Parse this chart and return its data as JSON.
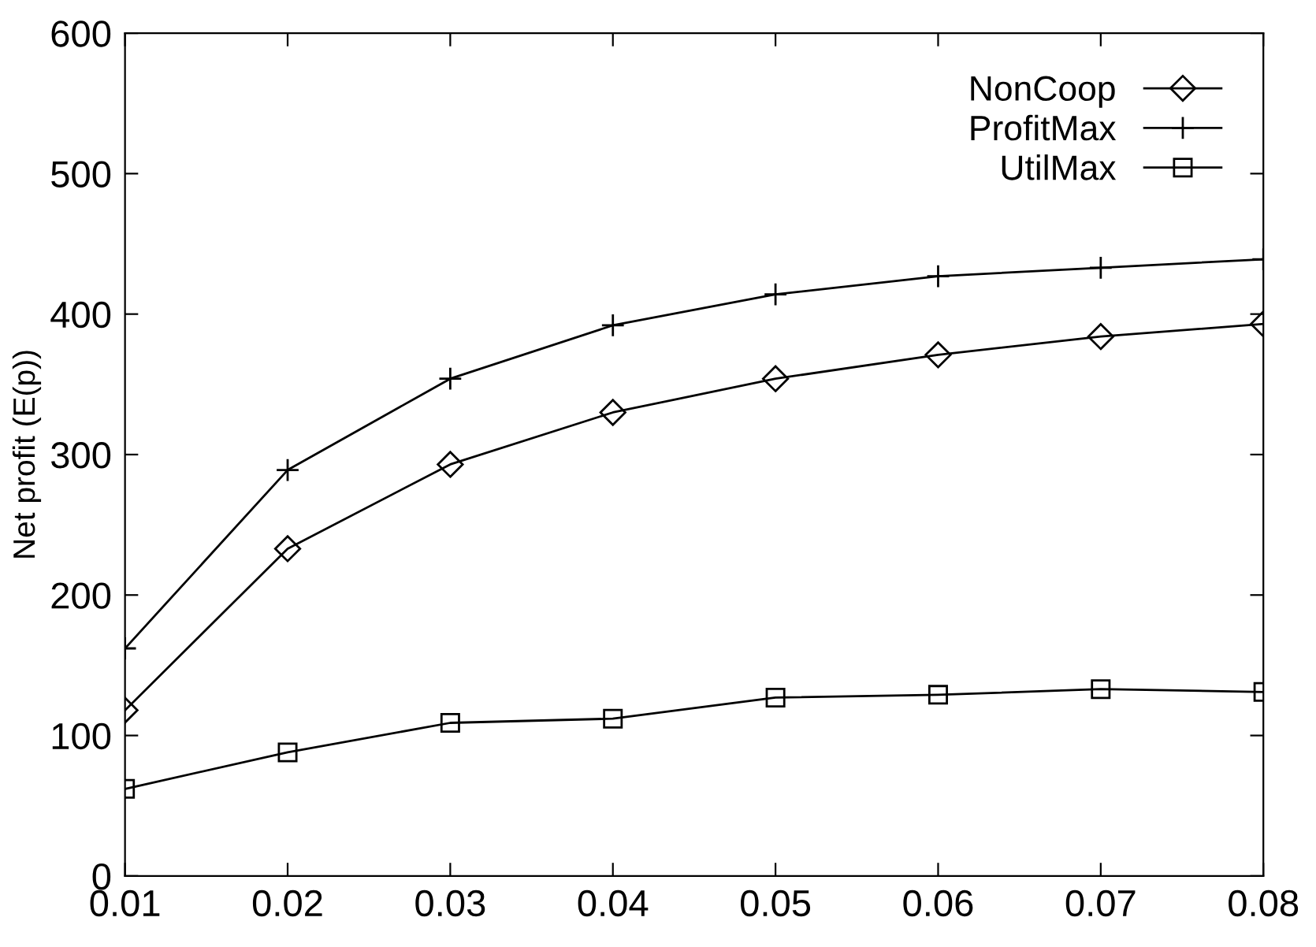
{
  "chart_data": {
    "type": "line",
    "ylabel": "Net profit (E(p))",
    "x": [
      0.01,
      0.02,
      0.03,
      0.04,
      0.05,
      0.06,
      0.07,
      0.08
    ],
    "series": [
      {
        "name": "NonCoop",
        "color": "#000000",
        "marker": "diamond",
        "values": [
          118,
          233,
          293,
          330,
          354,
          371,
          384,
          393
        ]
      },
      {
        "name": "ProfitMax",
        "color": "#000000",
        "marker": "cross",
        "values": [
          162,
          289,
          354,
          392,
          414,
          427,
          433,
          439
        ]
      },
      {
        "name": "UtilMax",
        "color": "#000000",
        "marker": "square",
        "values": [
          62,
          88,
          109,
          112,
          127,
          129,
          133,
          131
        ]
      }
    ],
    "xlim": [
      0.01,
      0.08
    ],
    "xticks": [
      0.01,
      0.02,
      0.03,
      0.04,
      0.05,
      0.06,
      0.07,
      0.08
    ],
    "ylim": [
      0,
      600
    ],
    "yticks": [
      0,
      100,
      200,
      300,
      400,
      500,
      600
    ],
    "grid": false,
    "legend": "top right",
    "line_style": "solid"
  }
}
